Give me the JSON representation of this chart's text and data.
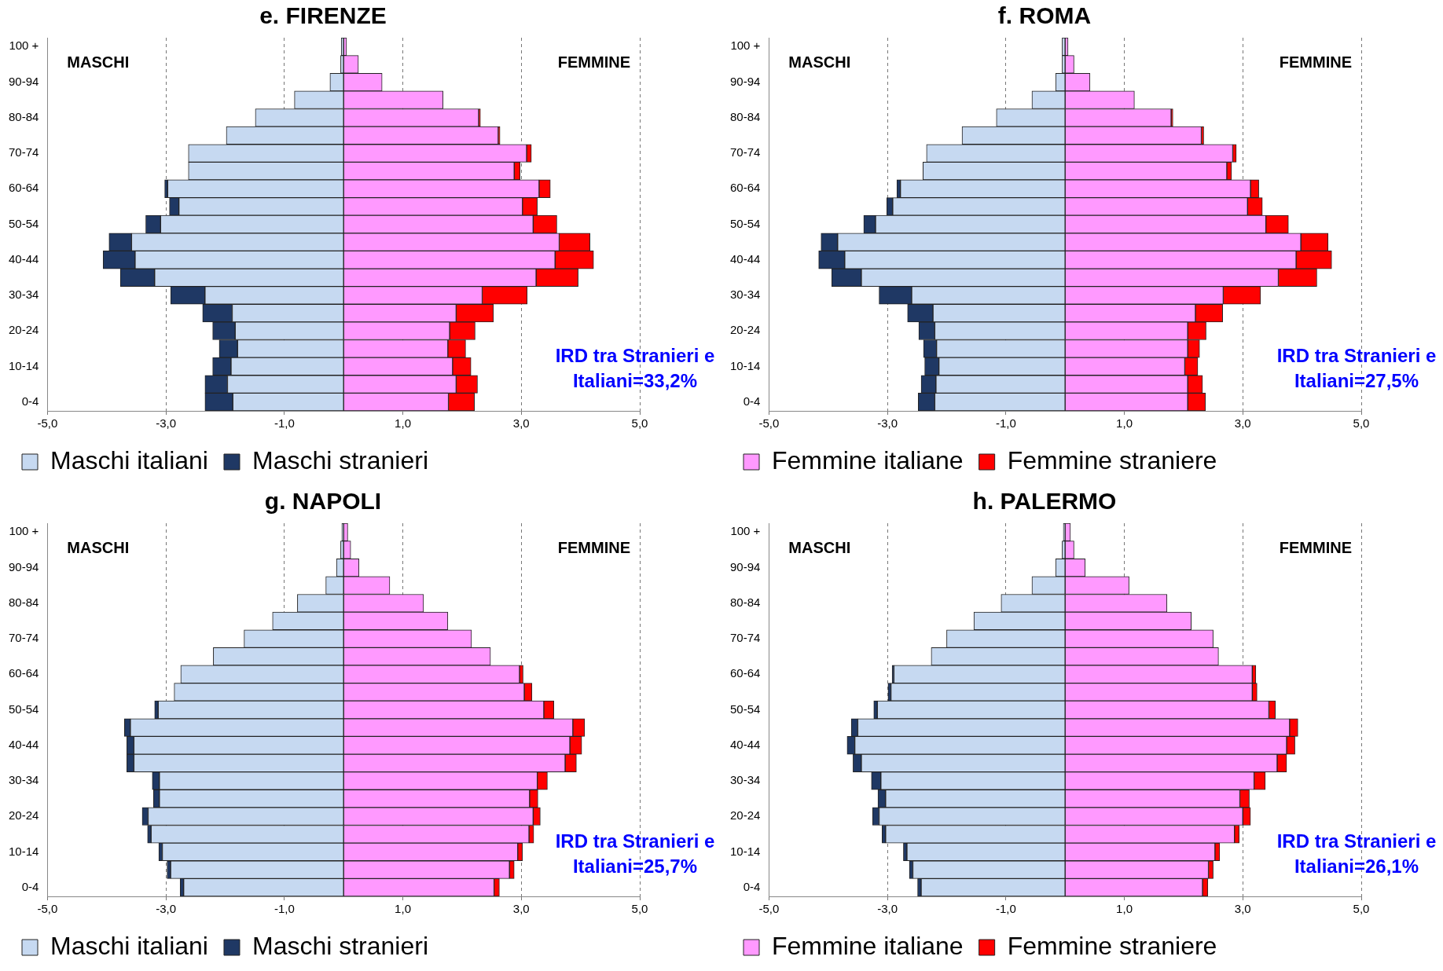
{
  "chart_data": [
    {
      "type": "bar",
      "title": "e. FIRENZE",
      "orientation": "horizontal",
      "stacked": true,
      "grid": "x",
      "legend": "bottom",
      "xlim": [
        -5,
        5
      ],
      "xticks": [
        {
          "value": -5,
          "label": "-5,0"
        },
        {
          "value": -3,
          "label": "-3,0"
        },
        {
          "value": -1,
          "label": "-1,0"
        },
        {
          "value": 1,
          "label": "1,0"
        },
        {
          "value": 3,
          "label": "3,0"
        },
        {
          "value": 5,
          "label": "5,0"
        }
      ],
      "categories": [
        "100 +",
        null,
        "90-94",
        null,
        "80-84",
        null,
        "70-74",
        null,
        "60-64",
        null,
        "50-54",
        null,
        "40-44",
        null,
        "30-34",
        null,
        "20-24",
        null,
        "10-14",
        null,
        "0-4"
      ],
      "series": [
        {
          "name": "Maschi italiani",
          "color": "#c6d9f1",
          "values": [
            -0.04,
            -0.05,
            -0.23,
            -0.83,
            -1.49,
            -1.98,
            -2.62,
            -2.62,
            -2.97,
            -2.78,
            -3.09,
            -3.58,
            -3.52,
            -3.19,
            -2.34,
            -1.88,
            -1.83,
            -1.79,
            -1.9,
            -1.96,
            -1.87
          ]
        },
        {
          "name": "Maschi stranieri",
          "color": "#1f3864",
          "values": [
            0,
            0,
            0,
            0,
            0,
            0,
            0,
            0,
            -0.05,
            -0.16,
            -0.25,
            -0.38,
            -0.54,
            -0.58,
            -0.58,
            -0.5,
            -0.38,
            -0.31,
            -0.31,
            -0.38,
            -0.47
          ]
        },
        {
          "color": "#ff99ff",
          "values": [
            0.05,
            0.25,
            0.65,
            1.68,
            2.28,
            2.61,
            3.09,
            2.88,
            3.3,
            3.02,
            3.2,
            3.64,
            3.57,
            3.25,
            2.34,
            1.9,
            1.79,
            1.76,
            1.84,
            1.9,
            1.77
          ]
        },
        {
          "color": "#ff0000",
          "values": [
            0,
            0,
            0,
            0,
            0.03,
            0.03,
            0.08,
            0.1,
            0.19,
            0.25,
            0.4,
            0.52,
            0.65,
            0.71,
            0.76,
            0.63,
            0.43,
            0.3,
            0.31,
            0.36,
            0.44
          ]
        }
      ],
      "annotations": [
        "MASCHI",
        "FEMMINE",
        "IRD tra Stranieri e Italiani=33,2%"
      ]
    },
    {
      "type": "bar",
      "title": "f. ROMA",
      "orientation": "horizontal",
      "stacked": true,
      "grid": "x",
      "legend": "bottom",
      "xlim": [
        -5,
        5
      ],
      "xticks": [
        {
          "value": -5,
          "label": "-5,0"
        },
        {
          "value": -3,
          "label": "-3,0"
        },
        {
          "value": -1,
          "label": "-1,0"
        },
        {
          "value": 1,
          "label": "1,0"
        },
        {
          "value": 3,
          "label": "3,0"
        },
        {
          "value": 5,
          "label": "5,0"
        }
      ],
      "categories": [
        "100 +",
        null,
        "90-94",
        null,
        "80-84",
        null,
        "70-74",
        null,
        "60-64",
        null,
        "50-54",
        null,
        "40-44",
        null,
        "30-34",
        null,
        "20-24",
        null,
        "10-14",
        null,
        "0-4"
      ],
      "series": [
        {
          "color": "#c6d9f1",
          "values": [
            -0.05,
            -0.05,
            -0.16,
            -0.56,
            -1.16,
            -1.74,
            -2.34,
            -2.4,
            -2.78,
            -2.91,
            -3.2,
            -3.84,
            -3.72,
            -3.44,
            -2.59,
            -2.23,
            -2.2,
            -2.17,
            -2.13,
            -2.18,
            -2.2
          ]
        },
        {
          "color": "#1f3864",
          "values": [
            0,
            0,
            0,
            0,
            0,
            0,
            0,
            0,
            -0.06,
            -0.1,
            -0.2,
            -0.28,
            -0.44,
            -0.5,
            -0.55,
            -0.43,
            -0.27,
            -0.22,
            -0.24,
            -0.25,
            -0.28
          ]
        },
        {
          "name": "Femmine italiane",
          "color": "#ff99ff",
          "values": [
            0.05,
            0.15,
            0.42,
            1.17,
            1.79,
            2.3,
            2.83,
            2.73,
            3.13,
            3.08,
            3.39,
            3.98,
            3.9,
            3.6,
            2.67,
            2.2,
            2.07,
            2.07,
            2.02,
            2.07,
            2.07
          ]
        },
        {
          "name": "Femmine straniere",
          "color": "#ff0000",
          "values": [
            0,
            0,
            0,
            0,
            0.03,
            0.04,
            0.06,
            0.08,
            0.14,
            0.25,
            0.38,
            0.46,
            0.6,
            0.65,
            0.63,
            0.46,
            0.31,
            0.2,
            0.22,
            0.25,
            0.3
          ]
        }
      ],
      "annotations": [
        "MASCHI",
        "FEMMINE",
        "IRD tra Stranieri e Italiani=27,5%"
      ]
    },
    {
      "type": "bar",
      "title": "g. NAPOLI",
      "orientation": "horizontal",
      "stacked": true,
      "grid": "x",
      "legend": "bottom",
      "xlim": [
        -5,
        5
      ],
      "xticks": [
        {
          "value": -5,
          "label": "-5,0"
        },
        {
          "value": -3,
          "label": "-3,0"
        },
        {
          "value": -1,
          "label": "-1,0"
        },
        {
          "value": 1,
          "label": "1,0"
        },
        {
          "value": 3,
          "label": "3,0"
        },
        {
          "value": 5,
          "label": "5,0"
        }
      ],
      "categories": [
        "100 +",
        null,
        "90-94",
        null,
        "80-84",
        null,
        "70-74",
        null,
        "60-64",
        null,
        "50-54",
        null,
        "40-44",
        null,
        "30-34",
        null,
        "20-24",
        null,
        "10-14",
        null,
        "0-4"
      ],
      "series": [
        {
          "name": "Maschi italiani",
          "color": "#c6d9f1",
          "values": [
            -0.03,
            -0.05,
            -0.12,
            -0.3,
            -0.78,
            -1.2,
            -1.68,
            -2.2,
            -2.75,
            -2.86,
            -3.13,
            -3.6,
            -3.54,
            -3.54,
            -3.11,
            -3.11,
            -3.3,
            -3.25,
            -3.06,
            -2.92,
            -2.7
          ]
        },
        {
          "name": "Maschi stranieri",
          "color": "#1f3864",
          "values": [
            0,
            0,
            0,
            0,
            0,
            0,
            0,
            0,
            0,
            0,
            -0.06,
            -0.1,
            -0.12,
            -0.12,
            -0.12,
            -0.1,
            -0.1,
            -0.06,
            -0.06,
            -0.06,
            -0.06
          ]
        },
        {
          "color": "#ff99ff",
          "values": [
            0.07,
            0.12,
            0.26,
            0.78,
            1.35,
            1.76,
            2.16,
            2.48,
            2.97,
            3.05,
            3.38,
            3.87,
            3.82,
            3.74,
            3.27,
            3.14,
            3.2,
            3.13,
            2.94,
            2.8,
            2.54
          ]
        },
        {
          "color": "#ff0000",
          "values": [
            0,
            0,
            0,
            0,
            0,
            0,
            0,
            0,
            0.06,
            0.13,
            0.17,
            0.2,
            0.2,
            0.19,
            0.17,
            0.14,
            0.12,
            0.08,
            0.08,
            0.08,
            0.09
          ]
        }
      ],
      "annotations": [
        "MASCHI",
        "FEMMINE",
        "IRD tra Stranieri e Italiani=25,7%"
      ]
    },
    {
      "type": "bar",
      "title": "h. PALERMO",
      "orientation": "horizontal",
      "stacked": true,
      "grid": "x",
      "legend": "bottom",
      "xlim": [
        -5,
        5
      ],
      "xticks": [
        {
          "value": -5,
          "label": "-5,0"
        },
        {
          "value": -3,
          "label": "-3,0"
        },
        {
          "value": -1,
          "label": "-1,0"
        },
        {
          "value": 1,
          "label": "1,0"
        },
        {
          "value": 3,
          "label": "3,0"
        },
        {
          "value": 5,
          "label": "5,0"
        }
      ],
      "categories": [
        "100 +",
        null,
        "90-94",
        null,
        "80-84",
        null,
        "70-74",
        null,
        "60-64",
        null,
        "50-54",
        null,
        "40-44",
        null,
        "30-34",
        null,
        "20-24",
        null,
        "10-14",
        null,
        "0-4"
      ],
      "series": [
        {
          "color": "#c6d9f1",
          "values": [
            -0.03,
            -0.05,
            -0.16,
            -0.56,
            -1.08,
            -1.54,
            -2.0,
            -2.26,
            -2.89,
            -2.94,
            -3.17,
            -3.5,
            -3.55,
            -3.44,
            -3.11,
            -3.03,
            -3.14,
            -3.03,
            -2.67,
            -2.57,
            -2.43
          ]
        },
        {
          "color": "#1f3864",
          "values": [
            0,
            0,
            0,
            0,
            0,
            0,
            0,
            0,
            -0.03,
            -0.05,
            -0.06,
            -0.11,
            -0.13,
            -0.14,
            -0.16,
            -0.13,
            -0.11,
            -0.06,
            -0.06,
            -0.06,
            -0.06
          ]
        },
        {
          "name": "Femmine italiane",
          "color": "#ff99ff",
          "values": [
            0.09,
            0.15,
            0.34,
            1.08,
            1.72,
            2.13,
            2.5,
            2.59,
            3.16,
            3.16,
            3.44,
            3.79,
            3.74,
            3.58,
            3.19,
            2.95,
            3.0,
            2.86,
            2.53,
            2.42,
            2.32
          ]
        },
        {
          "name": "Femmine straniere",
          "color": "#ff0000",
          "values": [
            0,
            0,
            0,
            0,
            0,
            0,
            0,
            0,
            0.06,
            0.08,
            0.11,
            0.14,
            0.14,
            0.16,
            0.19,
            0.16,
            0.13,
            0.08,
            0.08,
            0.08,
            0.09
          ]
        }
      ],
      "annotations": [
        "MASCHI",
        "FEMMINE",
        "IRD tra Stranieri e Italiani=26,1%"
      ]
    }
  ]
}
